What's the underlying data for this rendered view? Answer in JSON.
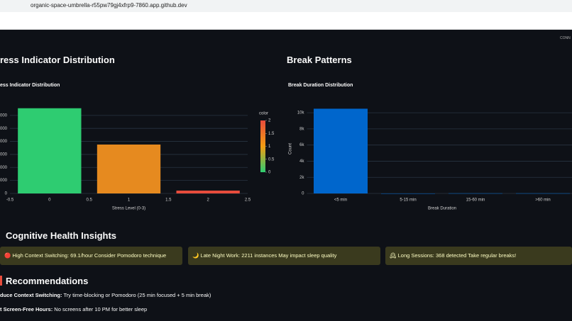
{
  "browser": {
    "url": "organic-space-umbrella-r55pw79gj4xfrp9-7860.app.github.dev"
  },
  "status": "CONN",
  "headings": [
    "ress Indicator Distribution",
    "Break Patterns",
    "Cognitive Health Insights",
    "Recommendations"
  ],
  "chart_data": [
    {
      "type": "bar",
      "title": "ess Indicator Distribution",
      "x_label": "Stress Level (0-3)",
      "x": [
        0,
        1,
        2
      ],
      "values": [
        6550,
        3760,
        220
      ],
      "colors": [
        "#2ecc71",
        "#e68a1f",
        "#e74c3c"
      ],
      "xlim": [
        -0.5,
        2.5
      ],
      "xticks": [
        -0.5,
        0,
        0.5,
        1,
        1.5,
        2,
        2.5
      ],
      "ylim": [
        0,
        6700
      ],
      "yticks": [
        0,
        1000,
        2000,
        3000,
        4000,
        5000,
        6000
      ],
      "grid": true,
      "colorbar": {
        "title": "color",
        "range": [
          0,
          2
        ],
        "ticks": [
          0,
          0.5,
          1,
          1.5,
          2
        ],
        "colorscale": [
          "#2ecc71",
          "#f39c12",
          "#e74c3c"
        ]
      }
    },
    {
      "type": "bar",
      "title": "Break Duration Distribution",
      "x_label": "Break Duration",
      "y_label": "Count",
      "categories": [
        "<5 min",
        "5-15 min",
        "15-60 min",
        ">60 min"
      ],
      "values": [
        10500,
        0,
        20,
        20
      ],
      "color": "#0066cc",
      "ylim": [
        0,
        10800
      ],
      "yticks": [
        0,
        {
          "value": 2000,
          "label": "2k"
        },
        {
          "value": 4000,
          "label": "4k"
        },
        {
          "value": 6000,
          "label": "6k"
        },
        {
          "value": 8000,
          "label": "8k"
        },
        {
          "value": 10000,
          "label": "10k"
        }
      ],
      "grid": true
    }
  ],
  "insights": [
    "🔴 High Context Switching: 69.1/hour Consider Pomodoro technique",
    "🌙 Late Night Work: 2211 instances May impact sleep quality",
    "🕰 Long Sessions: 368 detected Take regular breaks!"
  ],
  "recommendations": [
    {
      "label": "duce Context Switching:",
      "text": " Try time-blocking or Pomodoro (25 min focused + 5 min break)"
    },
    {
      "label": "t Screen-Free Hours:",
      "text": " No screens after 10 PM for better sleep"
    }
  ]
}
